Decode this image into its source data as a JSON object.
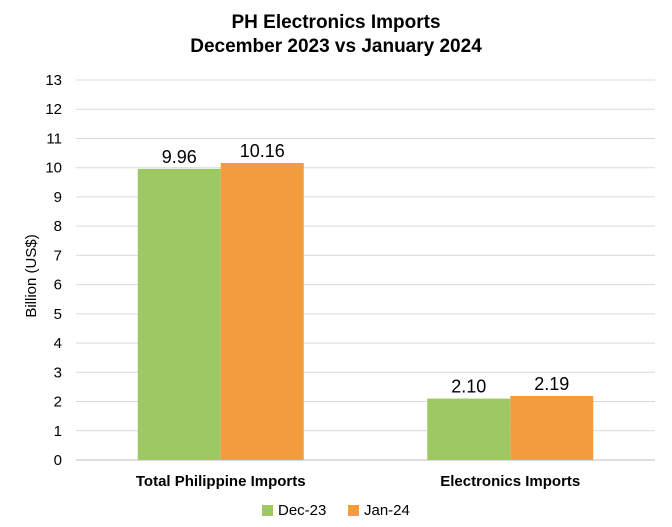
{
  "chart_data": {
    "type": "bar",
    "title": [
      "PH Electronics Imports",
      "December 2023 vs January 2024"
    ],
    "ylabel": "Billion (US$)",
    "xlabel": "",
    "ylim": [
      0,
      13
    ],
    "yticks": [
      0,
      1,
      2,
      3,
      4,
      5,
      6,
      7,
      8,
      9,
      10,
      11,
      12,
      13
    ],
    "categories": [
      "Total Philippine Imports",
      "Electronics Imports"
    ],
    "series": [
      {
        "name": "Dec-23",
        "values": [
          9.96,
          2.1
        ],
        "labels": [
          "9.96",
          "2.10"
        ],
        "color": "#9dc863"
      },
      {
        "name": "Jan-24",
        "values": [
          10.16,
          2.19
        ],
        "labels": [
          "10.16",
          "2.19"
        ],
        "color": "#f29c3e"
      }
    ],
    "grid": true,
    "legend": "bottom"
  }
}
